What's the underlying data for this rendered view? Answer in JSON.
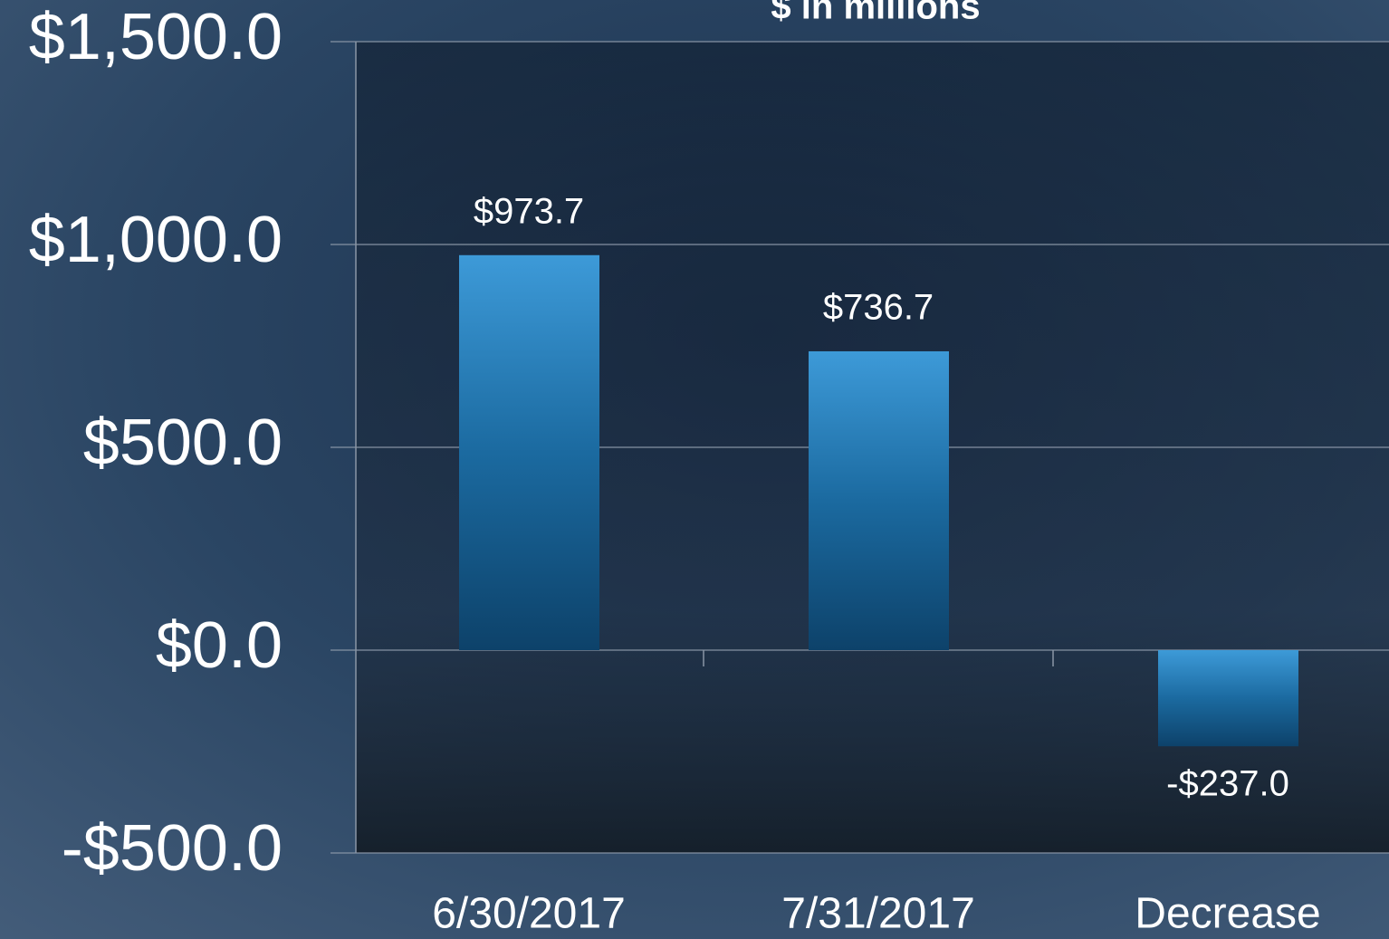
{
  "chart_data": {
    "type": "bar",
    "title": "$ in millions",
    "categories": [
      "6/30/2017",
      "7/31/2017",
      "Decrease"
    ],
    "values": [
      973.7,
      736.7,
      -237.0
    ],
    "value_labels": [
      "$973.7",
      "$736.7",
      "-$237.0"
    ],
    "color": "#1f78b4",
    "ylim": [
      -500,
      1500
    ],
    "yticks": [
      {
        "value": -500,
        "label": "-$500.0"
      },
      {
        "value": 0,
        "label": "$0.0"
      },
      {
        "value": 500,
        "label": "$500.0"
      },
      {
        "value": 1000,
        "label": "$1,000.0"
      },
      {
        "value": 1500,
        "label": "$1,500.0"
      }
    ],
    "grid": true
  }
}
